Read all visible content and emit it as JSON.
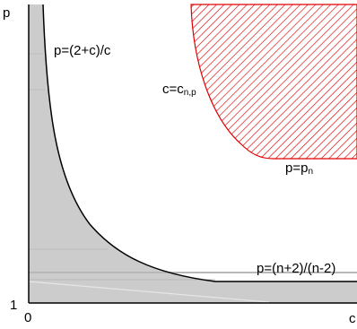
{
  "axes": {
    "y_axis_label": "p",
    "x_axis_label": "c",
    "y_tick_label": "1",
    "x_tick_label": "0"
  },
  "curves": {
    "upper_curve_label": "p=(2+c)/c",
    "asymptote_label": "p=(n+2)/(n-2)",
    "boundary_c_label_main": "c=c",
    "boundary_c_label_sub": "n,p",
    "boundary_p_label_main": "p=p",
    "boundary_p_label_sub": "n"
  },
  "colors": {
    "shaded_region": "#cccccc",
    "hatch": "#e00000",
    "curve": "#000000"
  }
}
